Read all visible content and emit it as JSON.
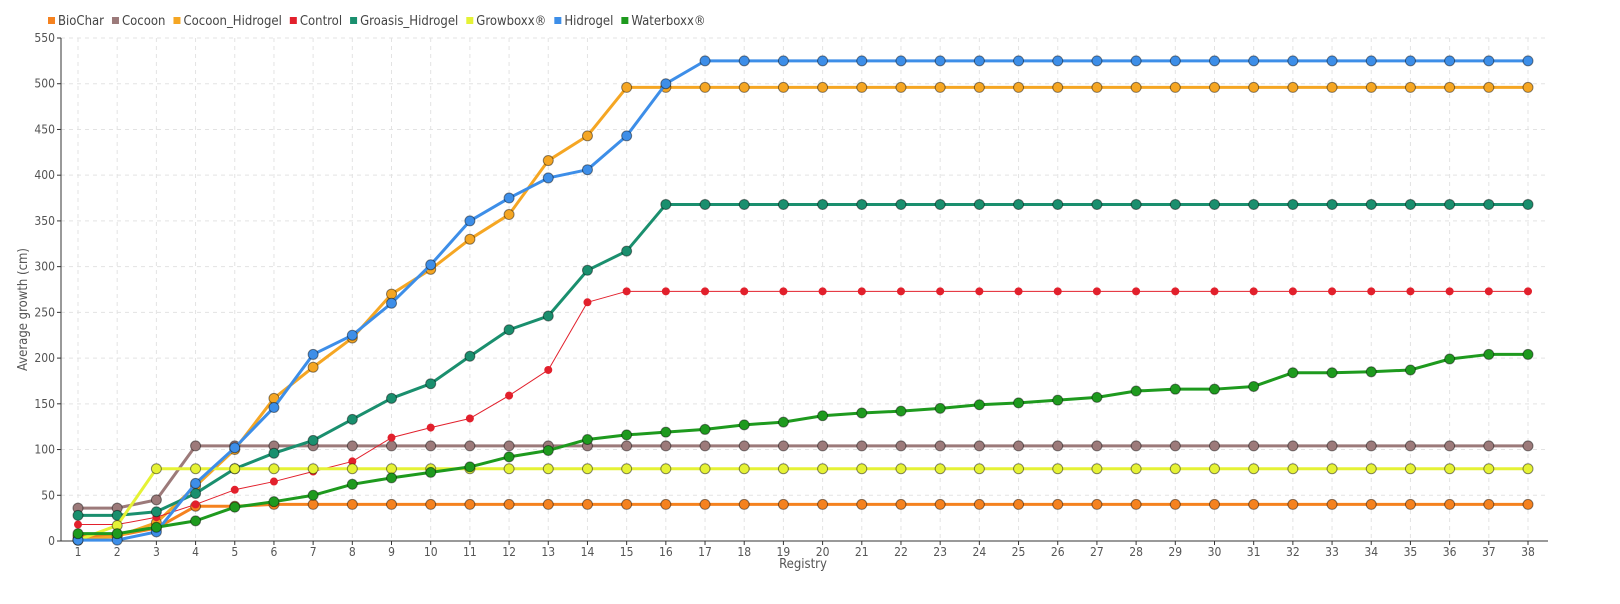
{
  "chart_data": {
    "type": "line",
    "xlabel": "Registry",
    "ylabel": "Average growth (cm)",
    "xlim": [
      1,
      38
    ],
    "ylim": [
      0,
      550
    ],
    "y_ticks": [
      0,
      50,
      100,
      150,
      200,
      250,
      300,
      350,
      400,
      450,
      500,
      550
    ],
    "grid": true,
    "legend_position": "top-left",
    "x": [
      1,
      2,
      3,
      4,
      5,
      6,
      7,
      8,
      9,
      10,
      11,
      12,
      13,
      14,
      15,
      16,
      17,
      18,
      19,
      20,
      21,
      22,
      23,
      24,
      25,
      26,
      27,
      28,
      29,
      30,
      31,
      32,
      33,
      34,
      35,
      36,
      37,
      38
    ],
    "series": [
      {
        "name": "BioChar",
        "color": "#f5821f",
        "thick": true,
        "values": [
          5,
          6,
          14,
          38,
          38,
          40,
          40,
          40,
          40,
          40,
          40,
          40,
          40,
          40,
          40,
          40,
          40,
          40,
          40,
          40,
          40,
          40,
          40,
          40,
          40,
          40,
          40,
          40,
          40,
          40,
          40,
          40,
          40,
          40,
          40,
          40,
          40,
          40
        ]
      },
      {
        "name": "Cocoon",
        "color": "#9c7a7a",
        "thick": true,
        "values": [
          36,
          36,
          45,
          104,
          104,
          104,
          104,
          104,
          104,
          104,
          104,
          104,
          104,
          104,
          104,
          104,
          104,
          104,
          104,
          104,
          104,
          104,
          104,
          104,
          104,
          104,
          104,
          104,
          104,
          104,
          104,
          104,
          104,
          104,
          104,
          104,
          104,
          104
        ]
      },
      {
        "name": "Cocoon_Hidrogel",
        "color": "#f5a623",
        "thick": true,
        "values": [
          1,
          5,
          20,
          60,
          100,
          156,
          190,
          222,
          270,
          297,
          330,
          357,
          416,
          443,
          496,
          496,
          496,
          496,
          496,
          496,
          496,
          496,
          496,
          496,
          496,
          496,
          496,
          496,
          496,
          496,
          496,
          496,
          496,
          496,
          496,
          496,
          496,
          496
        ]
      },
      {
        "name": "Control",
        "color": "#e2202c",
        "thick": false,
        "values": [
          18,
          18,
          26,
          40,
          56,
          65,
          76,
          87,
          113,
          124,
          134,
          159,
          187,
          261,
          273,
          273,
          273,
          273,
          273,
          273,
          273,
          273,
          273,
          273,
          273,
          273,
          273,
          273,
          273,
          273,
          273,
          273,
          273,
          273,
          273,
          273,
          273,
          273
        ]
      },
      {
        "name": "Groasis_Hidrogel",
        "color": "#1a8f6e",
        "thick": true,
        "values": [
          28,
          28,
          32,
          52,
          79,
          96,
          110,
          133,
          156,
          172,
          202,
          231,
          246,
          296,
          317,
          368,
          368,
          368,
          368,
          368,
          368,
          368,
          368,
          368,
          368,
          368,
          368,
          368,
          368,
          368,
          368,
          368,
          368,
          368,
          368,
          368,
          368,
          368
        ]
      },
      {
        "name": "Growboxx®",
        "color": "#e5f235",
        "thick": true,
        "values": [
          1,
          17,
          79,
          79,
          79,
          79,
          79,
          79,
          79,
          79,
          79,
          79,
          79,
          79,
          79,
          79,
          79,
          79,
          79,
          79,
          79,
          79,
          79,
          79,
          79,
          79,
          79,
          79,
          79,
          79,
          79,
          79,
          79,
          79,
          79,
          79,
          79,
          79
        ]
      },
      {
        "name": "Hidrogel",
        "color": "#3d8ee8",
        "thick": true,
        "values": [
          1,
          1,
          10,
          63,
          102,
          146,
          204,
          225,
          260,
          302,
          350,
          375,
          397,
          406,
          443,
          500,
          525,
          525,
          525,
          525,
          525,
          525,
          525,
          525,
          525,
          525,
          525,
          525,
          525,
          525,
          525,
          525,
          525,
          525,
          525,
          525,
          525,
          525
        ]
      },
      {
        "name": "Waterboxx®",
        "color": "#1e9a1e",
        "thick": true,
        "values": [
          8,
          8,
          15,
          22,
          37,
          43,
          50,
          62,
          69,
          75,
          81,
          92,
          99,
          111,
          116,
          119,
          122,
          127,
          130,
          137,
          140,
          142,
          145,
          149,
          151,
          154,
          157,
          164,
          166,
          166,
          169,
          184,
          184,
          185,
          187,
          199,
          204,
          204
        ]
      }
    ]
  }
}
